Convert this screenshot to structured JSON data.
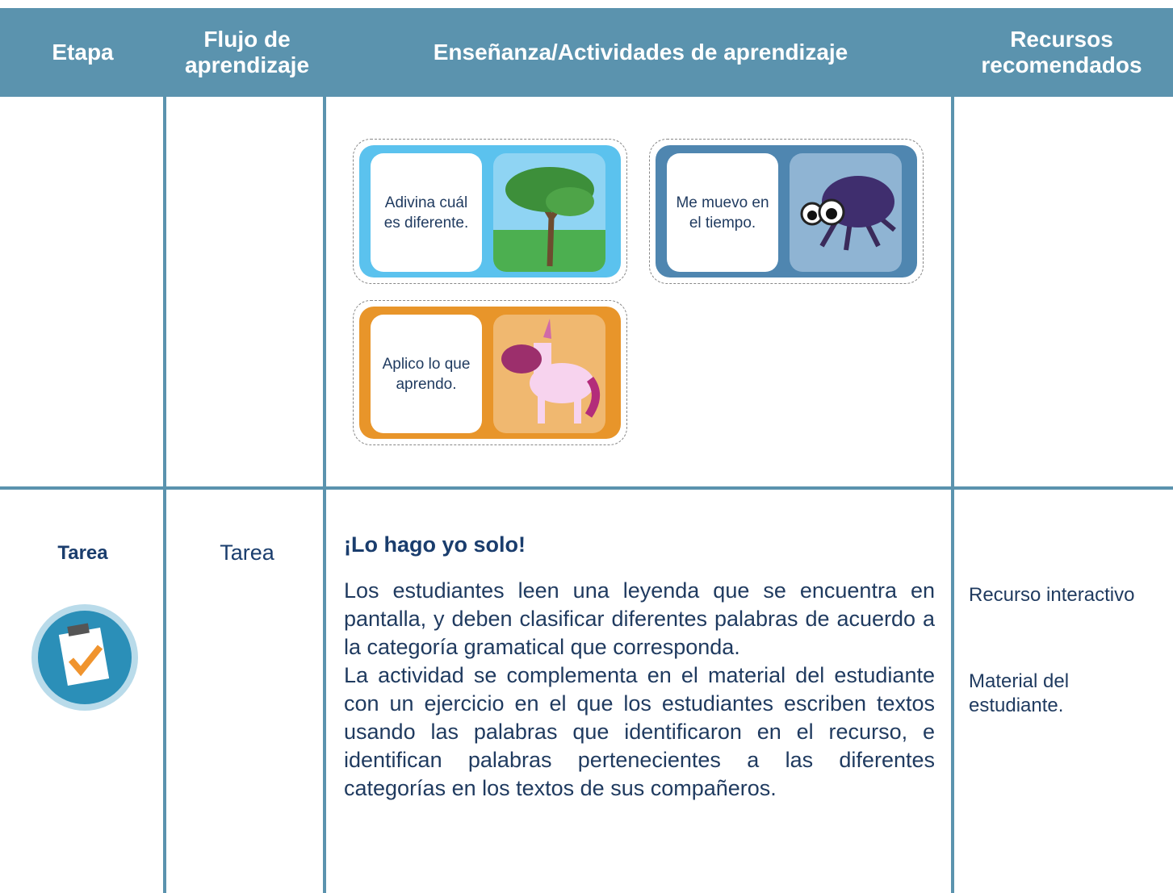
{
  "header": {
    "columns": [
      "Etapa",
      "Flujo de aprendizaje",
      "Enseñanza/Actividades de aprendizaje",
      "Recursos recomendados"
    ]
  },
  "cards": [
    {
      "text": "Adivina cuál es diferente."
    },
    {
      "text": "Me muevo en el tiempo."
    },
    {
      "text": "Aplico lo que aprendo."
    }
  ],
  "row": {
    "stage": "Tarea",
    "flow": "Tarea",
    "heading": "¡Lo hago yo solo!",
    "paragraphs": [
      "Los estudiantes leen una leyenda que se encuentra en pantalla, y deben clasificar diferentes palabras de acuerdo a la categoría gramatical que corresponda.",
      "La actividad se complementa en el material del estudiante con un ejercicio en el que los estudiantes escriben textos usando las palabras que identificaron en el recurso, e identifican palabras pertenecientes a las diferentes categorías en los textos de sus compañeros."
    ],
    "resources": [
      "Recurso interactivo",
      "Material del estudiante."
    ]
  }
}
